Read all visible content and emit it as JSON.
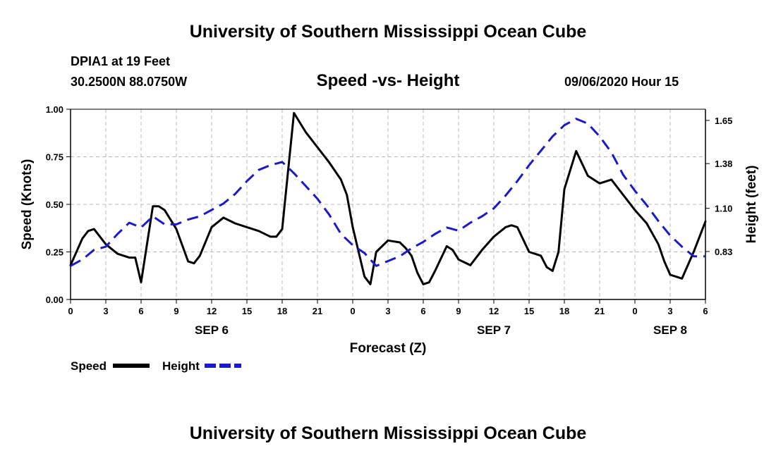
{
  "header": {
    "title": "University of Southern Mississippi Ocean Cube",
    "station": "DPIA1 at 19 Feet",
    "coords": "30.2500N 88.0750W",
    "subtitle": "Speed -vs- Height",
    "datetime": "09/06/2020 Hour 15"
  },
  "footer": {
    "title": "University of Southern Mississippi Ocean Cube"
  },
  "chart_data": {
    "type": "line",
    "title": "Speed -vs- Height",
    "xlabel": "Forecast (Z)",
    "ylabel": "Speed (Knots)",
    "y2label": "Height (feet)",
    "grid": true,
    "x_range": [
      0,
      54
    ],
    "x_ticks": [
      0,
      3,
      6,
      9,
      12,
      15,
      18,
      21,
      24,
      27,
      30,
      33,
      36,
      39,
      42,
      45,
      48,
      51,
      54
    ],
    "x_tick_labels": [
      "0",
      "3",
      "6",
      "9",
      "12",
      "15",
      "18",
      "21",
      "0",
      "3",
      "6",
      "9",
      "12",
      "15",
      "18",
      "21",
      "0",
      "3",
      "6"
    ],
    "day_labels": [
      {
        "label": "SEP 6",
        "x": 12
      },
      {
        "label": "SEP 7",
        "x": 36
      },
      {
        "label": "SEP 8",
        "x": 51
      }
    ],
    "ylim": [
      0,
      1.0
    ],
    "y_ticks": [
      0,
      0.25,
      0.5,
      0.75,
      1.0
    ],
    "y_tick_labels": [
      "0.00",
      "0.25",
      "0.50",
      "0.75",
      "1.00"
    ],
    "y2lim": [
      0.53,
      1.72
    ],
    "y2_ticks": [
      0.83,
      1.1,
      1.38,
      1.65
    ],
    "y2_tick_labels": [
      "0.83",
      "1.10",
      "1.38",
      "1.65"
    ],
    "legend": [
      {
        "name": "Speed",
        "color": "#000000",
        "dash": "solid"
      },
      {
        "name": "Height",
        "color": "#1a1acc",
        "dash": "dashed"
      }
    ],
    "series": [
      {
        "name": "Speed",
        "axis": "left",
        "color": "#000000",
        "x": [
          0,
          1,
          1.5,
          2,
          3,
          4,
          5,
          5.5,
          6,
          7,
          7.5,
          8,
          9,
          10,
          10.5,
          11,
          12,
          13,
          14,
          15,
          16,
          17,
          17.5,
          18,
          19,
          20,
          21,
          22,
          23,
          23.5,
          24,
          25,
          25.5,
          26,
          27,
          28,
          28.5,
          29,
          29.5,
          30,
          30.5,
          31,
          32,
          32.5,
          33,
          34,
          35,
          36,
          37,
          37.5,
          38,
          39,
          40,
          40.5,
          41,
          41.5,
          42,
          43,
          44,
          45,
          46,
          47,
          48,
          49,
          50,
          50.5,
          51,
          52,
          53,
          54
        ],
        "values": [
          0.18,
          0.32,
          0.36,
          0.37,
          0.29,
          0.24,
          0.22,
          0.22,
          0.09,
          0.49,
          0.49,
          0.47,
          0.37,
          0.2,
          0.19,
          0.23,
          0.38,
          0.43,
          0.4,
          0.38,
          0.36,
          0.33,
          0.33,
          0.37,
          0.98,
          0.88,
          0.8,
          0.72,
          0.63,
          0.55,
          0.38,
          0.12,
          0.08,
          0.25,
          0.31,
          0.3,
          0.27,
          0.23,
          0.14,
          0.08,
          0.09,
          0.15,
          0.28,
          0.26,
          0.21,
          0.18,
          0.26,
          0.33,
          0.38,
          0.39,
          0.38,
          0.25,
          0.23,
          0.17,
          0.15,
          0.25,
          0.58,
          0.78,
          0.65,
          0.61,
          0.63,
          0.55,
          0.47,
          0.4,
          0.29,
          0.2,
          0.13,
          0.11,
          0.25,
          0.41
        ]
      },
      {
        "name": "Height",
        "axis": "right",
        "color": "#1a1acc",
        "x": [
          0,
          1,
          2,
          3,
          4,
          5,
          6,
          7,
          8,
          9,
          10,
          11,
          12,
          13,
          14,
          15,
          16,
          17,
          18,
          19,
          20,
          21,
          22,
          23,
          24,
          25,
          26,
          27,
          28,
          29,
          30,
          31,
          32,
          33,
          34,
          35,
          36,
          37,
          38,
          39,
          40,
          41,
          42,
          43,
          44,
          45,
          46,
          47,
          48,
          49,
          50,
          51,
          52,
          53,
          54
        ],
        "values": [
          0.74,
          0.78,
          0.84,
          0.86,
          0.94,
          1.01,
          0.98,
          1.05,
          1.0,
          1.0,
          1.03,
          1.05,
          1.09,
          1.13,
          1.19,
          1.27,
          1.34,
          1.37,
          1.39,
          1.32,
          1.24,
          1.16,
          1.06,
          0.94,
          0.87,
          0.82,
          0.74,
          0.77,
          0.8,
          0.85,
          0.89,
          0.94,
          0.98,
          0.96,
          1.01,
          1.05,
          1.1,
          1.18,
          1.27,
          1.37,
          1.46,
          1.55,
          1.62,
          1.66,
          1.63,
          1.55,
          1.45,
          1.31,
          1.21,
          1.12,
          1.02,
          0.93,
          0.86,
          0.8,
          0.8
        ]
      }
    ]
  }
}
